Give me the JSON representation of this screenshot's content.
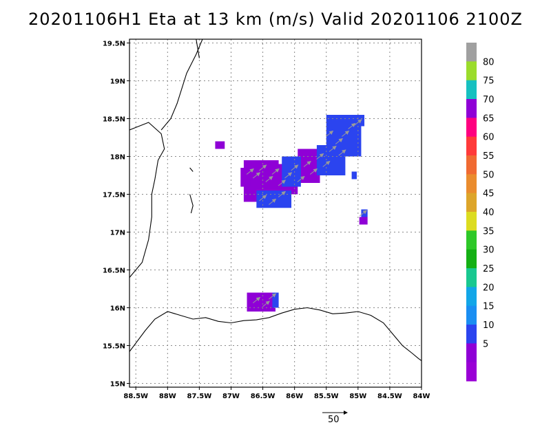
{
  "title": "20201106H1 Eta at 13 km (m/s) Valid 20201106  2100Z",
  "map": {
    "lon_range": [
      -88.6,
      -84.0
    ],
    "lat_range": [
      14.95,
      19.55
    ],
    "lon_ticks": [
      {
        "v": -88.5,
        "label": "88.5W"
      },
      {
        "v": -88.0,
        "label": "88W"
      },
      {
        "v": -87.5,
        "label": "87.5W"
      },
      {
        "v": -87.0,
        "label": "87W"
      },
      {
        "v": -86.5,
        "label": "86.5W"
      },
      {
        "v": -86.0,
        "label": "86W"
      },
      {
        "v": -85.5,
        "label": "85.5W"
      },
      {
        "v": -85.0,
        "label": "85W"
      },
      {
        "v": -84.5,
        "label": "84.5W"
      },
      {
        "v": -84.0,
        "label": "84W"
      }
    ],
    "lat_ticks": [
      {
        "v": 19.5,
        "label": "19.5N"
      },
      {
        "v": 19.0,
        "label": "19N"
      },
      {
        "v": 18.5,
        "label": "18.5N"
      },
      {
        "v": 18.0,
        "label": "18N"
      },
      {
        "v": 17.5,
        "label": "17.5N"
      },
      {
        "v": 17.0,
        "label": "17N"
      },
      {
        "v": 16.5,
        "label": "16.5N"
      },
      {
        "v": 16.0,
        "label": "16N"
      },
      {
        "v": 15.5,
        "label": "15.5N"
      },
      {
        "v": 15.0,
        "label": "15N"
      }
    ],
    "grid": true,
    "coastline": [
      [
        [
          -88.6,
          15.42
        ],
        [
          -88.35,
          15.7
        ],
        [
          -88.2,
          15.85
        ],
        [
          -88.0,
          15.95
        ],
        [
          -87.8,
          15.9
        ],
        [
          -87.6,
          15.85
        ],
        [
          -87.4,
          15.87
        ],
        [
          -87.2,
          15.82
        ],
        [
          -87.0,
          15.8
        ],
        [
          -86.8,
          15.83
        ],
        [
          -86.6,
          15.84
        ],
        [
          -86.4,
          15.87
        ],
        [
          -86.2,
          15.93
        ],
        [
          -86.0,
          15.98
        ],
        [
          -85.8,
          16.0
        ],
        [
          -85.6,
          15.97
        ],
        [
          -85.4,
          15.92
        ],
        [
          -85.2,
          15.93
        ],
        [
          -85.0,
          15.95
        ],
        [
          -84.8,
          15.9
        ],
        [
          -84.6,
          15.8
        ],
        [
          -84.4,
          15.6
        ],
        [
          -84.3,
          15.5
        ],
        [
          -84.15,
          15.4
        ],
        [
          -84.05,
          15.33
        ],
        [
          -84.0,
          15.3
        ]
      ],
      [
        [
          -88.6,
          16.4
        ],
        [
          -88.4,
          16.6
        ],
        [
          -88.3,
          16.9
        ],
        [
          -88.25,
          17.2
        ],
        [
          -88.25,
          17.5
        ],
        [
          -88.2,
          17.7
        ],
        [
          -88.15,
          17.95
        ],
        [
          -88.05,
          18.1
        ],
        [
          -88.1,
          18.3
        ],
        [
          -88.3,
          18.45
        ],
        [
          -88.45,
          18.4
        ],
        [
          -88.6,
          18.35
        ]
      ],
      [
        [
          -88.1,
          18.35
        ],
        [
          -87.95,
          18.5
        ],
        [
          -87.85,
          18.7
        ],
        [
          -87.7,
          19.1
        ],
        [
          -87.55,
          19.35
        ],
        [
          -87.45,
          19.55
        ]
      ],
      [
        [
          -87.55,
          19.55
        ],
        [
          -87.5,
          19.3
        ]
      ],
      [
        [
          -87.65,
          17.85
        ],
        [
          -87.6,
          17.8
        ]
      ],
      [
        [
          -87.65,
          17.5
        ],
        [
          -87.6,
          17.35
        ],
        [
          -87.63,
          17.25
        ]
      ]
    ],
    "wind_patches": [
      {
        "color": "#8f00d6",
        "lon": [
          -86.8,
          -86.25
        ],
        "lat": [
          17.4,
          17.95
        ]
      },
      {
        "color": "#8f00d6",
        "lon": [
          -86.3,
          -85.95
        ],
        "lat": [
          17.5,
          17.9
        ]
      },
      {
        "color": "#8f00d6",
        "lon": [
          -86.85,
          -86.7
        ],
        "lat": [
          17.6,
          17.85
        ]
      },
      {
        "color": "#8f00d6",
        "lon": [
          -85.95,
          -85.6
        ],
        "lat": [
          17.65,
          18.1
        ]
      },
      {
        "color": "#2b44ef",
        "lon": [
          -86.2,
          -85.9
        ],
        "lat": [
          17.6,
          18.0
        ]
      },
      {
        "color": "#2b44ef",
        "lon": [
          -85.65,
          -85.2
        ],
        "lat": [
          17.75,
          18.15
        ]
      },
      {
        "color": "#2b44ef",
        "lon": [
          -85.5,
          -84.95
        ],
        "lat": [
          18.0,
          18.55
        ]
      },
      {
        "color": "#2b44ef",
        "lon": [
          -85.05,
          -84.9
        ],
        "lat": [
          18.4,
          18.55
        ]
      },
      {
        "color": "#2b44ef",
        "lon": [
          -86.6,
          -86.05
        ],
        "lat": [
          17.32,
          17.55
        ]
      },
      {
        "color": "#8f00d6",
        "lon": [
          -87.25,
          -87.1
        ],
        "lat": [
          18.1,
          18.2
        ]
      },
      {
        "color": "#8f00d6",
        "lon": [
          -86.75,
          -86.3
        ],
        "lat": [
          15.95,
          16.2
        ]
      },
      {
        "color": "#2b44ef",
        "lon": [
          -86.35,
          -86.25
        ],
        "lat": [
          16.0,
          16.2
        ]
      },
      {
        "color": "#2b44ef",
        "lon": [
          -84.95,
          -84.85
        ],
        "lat": [
          17.2,
          17.3
        ]
      },
      {
        "color": "#8f00d6",
        "lon": [
          -84.98,
          -84.85
        ],
        "lat": [
          17.1,
          17.2
        ]
      },
      {
        "color": "#2b44ef",
        "lon": [
          -85.1,
          -85.02
        ],
        "lat": [
          17.7,
          17.8
        ]
      }
    ],
    "wind_vectors": [
      [
        -86.7,
        17.8
      ],
      [
        -86.6,
        17.75
      ],
      [
        -86.5,
        17.85
      ],
      [
        -86.4,
        17.7
      ],
      [
        -86.3,
        17.8
      ],
      [
        -86.2,
        17.65
      ],
      [
        -86.1,
        17.75
      ],
      [
        -86.0,
        17.85
      ],
      [
        -85.9,
        17.7
      ],
      [
        -85.8,
        17.9
      ],
      [
        -85.7,
        17.8
      ],
      [
        -85.6,
        18.0
      ],
      [
        -85.5,
        17.9
      ],
      [
        -85.4,
        18.1
      ],
      [
        -85.3,
        18.2
      ],
      [
        -85.2,
        18.3
      ],
      [
        -85.1,
        18.4
      ],
      [
        -85.0,
        18.45
      ],
      [
        -86.5,
        17.45
      ],
      [
        -86.35,
        17.4
      ],
      [
        -86.2,
        17.5
      ],
      [
        -86.6,
        16.1
      ],
      [
        -86.45,
        16.05
      ],
      [
        -86.35,
        16.15
      ],
      [
        -85.45,
        18.3
      ],
      [
        -85.25,
        18.05
      ],
      [
        -84.92,
        17.25
      ]
    ]
  },
  "colorbar": {
    "labels": [
      "80",
      "75",
      "70",
      "65",
      "60",
      "55",
      "50",
      "45",
      "40",
      "35",
      "30",
      "25",
      "20",
      "15",
      "10",
      "5"
    ],
    "colors": [
      "#a0a0a0",
      "#9bdc2c",
      "#17c0c0",
      "#8f00d6",
      "#ff0080",
      "#ff3a3a",
      "#f06a32",
      "#ea8c2e",
      "#dda52a",
      "#dcdc20",
      "#2ec828",
      "#14b014",
      "#19c890",
      "#12a6e8",
      "#1a8ef2",
      "#2b44ef",
      "#8f00d6",
      "#9a00d6"
    ]
  },
  "reference_vector": {
    "label": "50"
  }
}
